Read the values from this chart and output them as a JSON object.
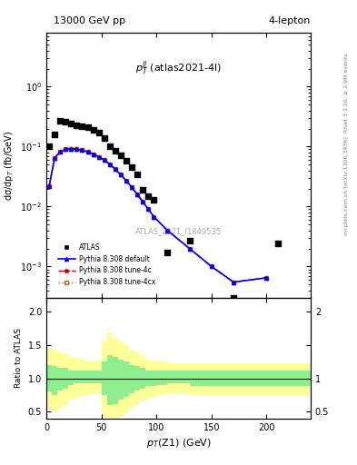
{
  "title_top": "13000 GeV pp",
  "title_right": "4-lepton",
  "plot_label": "$p_T^{ll}$ (atlas2021-4l)",
  "watermark": "ATLAS_2021_I1849535",
  "right_label": "mcplots.cern.ch [arXiv:1306.3436]",
  "right_label2": "Rivet 3.1.10, ≥ 2.9M events",
  "ylabel_main": "dσ/dp$_T$ (fb/GeV)",
  "ylabel_ratio": "Ratio to ATLAS",
  "xlabel": "$p_T$(Z1) (GeV)",
  "xlim": [
    0,
    240
  ],
  "ylim_main_log": [
    0.0003,
    8
  ],
  "ylim_ratio": [
    0.4,
    2.2
  ],
  "atlas_x": [
    2.5,
    7.5,
    12.5,
    17.5,
    22.5,
    27.5,
    32.5,
    37.5,
    42.5,
    47.5,
    52.5,
    57.5,
    62.5,
    67.5,
    72.5,
    77.5,
    82.5,
    87.5,
    92.5,
    97.5,
    110,
    130,
    170,
    210
  ],
  "atlas_y": [
    0.1,
    0.16,
    0.27,
    0.26,
    0.24,
    0.23,
    0.22,
    0.21,
    0.19,
    0.17,
    0.14,
    0.1,
    0.085,
    0.072,
    0.058,
    0.045,
    0.035,
    0.019,
    0.015,
    0.013,
    0.0017,
    0.0027,
    0.0003,
    0.0024
  ],
  "pythia_x": [
    2.5,
    7.5,
    12.5,
    17.5,
    22.5,
    27.5,
    32.5,
    37.5,
    42.5,
    47.5,
    52.5,
    57.5,
    62.5,
    67.5,
    72.5,
    77.5,
    82.5,
    87.5,
    92.5,
    97.5,
    110,
    130,
    150,
    170,
    200
  ],
  "pythia_default_y": [
    0.022,
    0.065,
    0.082,
    0.09,
    0.092,
    0.091,
    0.087,
    0.082,
    0.075,
    0.068,
    0.06,
    0.051,
    0.042,
    0.034,
    0.027,
    0.021,
    0.016,
    0.012,
    0.0091,
    0.0068,
    0.004,
    0.002,
    0.001,
    0.00055,
    0.00065
  ],
  "pythia_4c_y": [
    0.022,
    0.065,
    0.082,
    0.09,
    0.092,
    0.091,
    0.087,
    0.082,
    0.075,
    0.068,
    0.06,
    0.051,
    0.042,
    0.034,
    0.027,
    0.021,
    0.016,
    0.012,
    0.0091,
    0.0068,
    0.004,
    0.002,
    0.001,
    0.00055,
    0.00065
  ],
  "pythia_4cx_y": [
    0.022,
    0.065,
    0.082,
    0.09,
    0.092,
    0.091,
    0.087,
    0.082,
    0.075,
    0.068,
    0.06,
    0.051,
    0.042,
    0.034,
    0.027,
    0.021,
    0.016,
    0.012,
    0.0091,
    0.0068,
    0.004,
    0.002,
    0.001,
    0.00055,
    0.00065
  ],
  "ratio_x_edges": [
    0,
    5,
    10,
    15,
    20,
    25,
    30,
    35,
    40,
    45,
    50,
    55,
    60,
    65,
    70,
    75,
    80,
    85,
    90,
    95,
    100,
    110,
    120,
    130,
    140,
    150,
    160,
    170,
    180,
    190,
    200,
    220,
    240
  ],
  "ratio_green_lo": [
    0.8,
    0.75,
    0.82,
    0.85,
    0.9,
    0.92,
    0.92,
    0.92,
    0.92,
    0.92,
    0.75,
    0.6,
    0.62,
    0.68,
    0.72,
    0.78,
    0.82,
    0.85,
    0.88,
    0.88,
    0.9,
    0.92,
    0.92,
    0.88,
    0.88,
    0.88,
    0.88,
    0.88,
    0.88,
    0.88,
    0.88,
    0.88
  ],
  "ratio_green_hi": [
    1.2,
    1.18,
    1.15,
    1.15,
    1.12,
    1.12,
    1.12,
    1.12,
    1.12,
    1.12,
    1.25,
    1.35,
    1.32,
    1.28,
    1.25,
    1.2,
    1.18,
    1.15,
    1.12,
    1.12,
    1.12,
    1.12,
    1.12,
    1.12,
    1.12,
    1.12,
    1.12,
    1.12,
    1.12,
    1.12,
    1.12,
    1.12
  ],
  "ratio_yellow_lo": [
    0.55,
    0.5,
    0.55,
    0.6,
    0.68,
    0.72,
    0.74,
    0.75,
    0.76,
    0.76,
    0.42,
    0.3,
    0.35,
    0.42,
    0.48,
    0.55,
    0.6,
    0.65,
    0.7,
    0.72,
    0.75,
    0.78,
    0.78,
    0.75,
    0.75,
    0.75,
    0.75,
    0.75,
    0.75,
    0.75,
    0.75,
    0.75
  ],
  "ratio_yellow_hi": [
    1.45,
    1.42,
    1.38,
    1.36,
    1.32,
    1.3,
    1.28,
    1.27,
    1.26,
    1.26,
    1.55,
    1.68,
    1.62,
    1.55,
    1.5,
    1.42,
    1.38,
    1.33,
    1.28,
    1.26,
    1.25,
    1.22,
    1.22,
    1.22,
    1.22,
    1.22,
    1.22,
    1.22,
    1.22,
    1.22,
    1.22,
    1.22
  ],
  "color_default": "#0000ff",
  "color_4c": "#cc0000",
  "color_4cx": "#cc6600",
  "color_atlas": "#000000",
  "color_green": "#90ee90",
  "color_yellow": "#ffff99"
}
